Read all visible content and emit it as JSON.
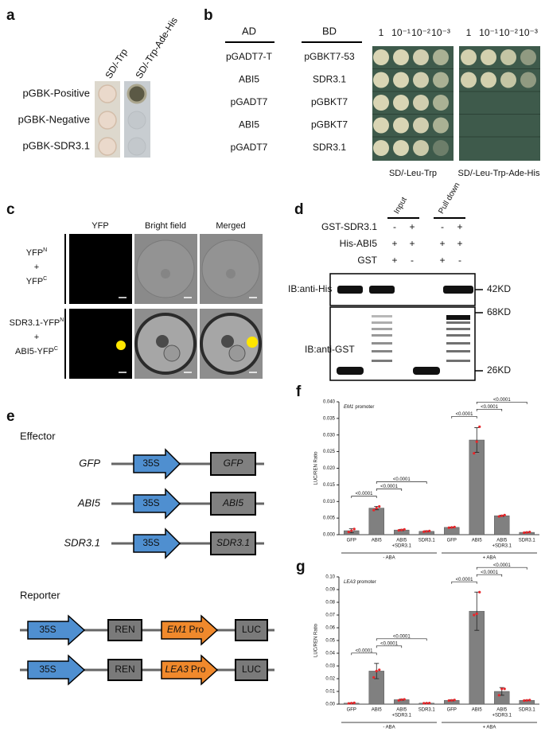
{
  "panels": {
    "a": {
      "label": "a",
      "columns": [
        "SD/-Trp",
        "SD/-Trp-Ade-His"
      ],
      "rows": [
        "pGBK-Positive",
        "pGBK-Negative",
        "pGBK-SDR3.1"
      ]
    },
    "b": {
      "label": "b",
      "headers": [
        "AD",
        "BD"
      ],
      "dilutions": [
        "1",
        "10⁻¹",
        "10⁻²",
        "10⁻³"
      ],
      "rows": [
        [
          "pGADT7-T",
          "pGBKT7-53"
        ],
        [
          "ABI5",
          "SDR3.1"
        ],
        [
          "pGADT7",
          "pGBKT7"
        ],
        [
          "ABI5",
          "pGBKT7"
        ],
        [
          "pGADT7",
          "SDR3.1"
        ]
      ],
      "media": [
        "SD/-Leu-Trp",
        "SD/-Leu-Trp-Ade-His"
      ]
    },
    "c": {
      "label": "c",
      "columns": [
        "YFP",
        "Bright field",
        "Merged"
      ],
      "rows": [
        [
          {
            "base": "YFP",
            "sup": "N"
          },
          {
            "base": "+"
          },
          {
            "base": "YFP",
            "sup": "C"
          }
        ],
        [
          {
            "base": "SDR3.1-YFP",
            "sup": "N"
          },
          {
            "base": "+"
          },
          {
            "base": "ABI5-YFP",
            "sup": "C"
          }
        ]
      ]
    },
    "d": {
      "label": "d",
      "groups": [
        "Input",
        "Pull down"
      ],
      "rows": [
        {
          "name": "GST-SDR3.1",
          "signs": [
            "-",
            "+",
            "-",
            "+"
          ]
        },
        {
          "name": "His-ABI5",
          "signs": [
            "+",
            "+",
            "+",
            "+"
          ]
        },
        {
          "name": "GST",
          "signs": [
            "+",
            "-",
            "+",
            "-"
          ]
        }
      ],
      "blots": [
        "IB:anti-His",
        "IB:anti-GST"
      ],
      "markers": [
        "42KD",
        "68KD",
        "26KD"
      ]
    },
    "e": {
      "label": "e",
      "effector_title": "Effector",
      "effectors": [
        {
          "name": "GFP",
          "promoter": "35S",
          "gene": "GFP"
        },
        {
          "name": "ABI5",
          "promoter": "35S",
          "gene": "ABI5"
        },
        {
          "name": "SDR3.1",
          "promoter": "35S",
          "gene": "SDR3.1"
        }
      ],
      "reporter_title": "Reporter",
      "reporters": [
        {
          "promoter": "35S",
          "control": "REN",
          "gene": "EM1",
          "suffix": "Pro",
          "reporter": "LUC"
        },
        {
          "promoter": "35S",
          "control": "REN",
          "gene": "LEA3",
          "suffix": "Pro",
          "reporter": "LUC"
        }
      ]
    }
  },
  "chart_data": [
    {
      "type": "bar",
      "panel_label": "f",
      "annotation_gene": "EM1",
      "annotation": "promoter",
      "ylabel": "LUC/REN Ratio",
      "categories": [
        [
          "GFP"
        ],
        [
          "ABI5"
        ],
        [
          "ABI5",
          "+SDR3.1"
        ],
        [
          "SDR3.1"
        ],
        [
          "GFP"
        ],
        [
          "ABI5"
        ],
        [
          "ABI5",
          "+SDR3.1"
        ],
        [
          "SDR3.1"
        ]
      ],
      "groups": [
        "- ABA",
        "+ ABA"
      ],
      "values": [
        0.0012,
        0.008,
        0.0014,
        0.001,
        0.0022,
        0.0285,
        0.0057,
        0.0007
      ],
      "errors": [
        0.0006,
        0.0005,
        0.0002,
        0.0002,
        0.0001,
        0.0037,
        0.0002,
        0.0001
      ],
      "points": [
        [
          0.0008,
          0.0012,
          0.0017
        ],
        [
          0.0074,
          0.008,
          0.0085
        ],
        [
          0.0013,
          0.0014,
          0.0016
        ],
        [
          0.0009,
          0.001,
          0.0011
        ],
        [
          0.0021,
          0.0022,
          0.0023
        ],
        [
          0.0245,
          0.028,
          0.0325
        ],
        [
          0.0055,
          0.0057,
          0.0059
        ],
        [
          0.0006,
          0.0007,
          0.0008
        ]
      ],
      "color": "#808080",
      "point_color": "#e8262a",
      "ylim": [
        0,
        0.04
      ],
      "yticks": [
        {
          "value": 0,
          "label": "0.000"
        },
        {
          "value": 0.005,
          "label": "0.005"
        },
        {
          "value": 0.01,
          "label": "0.010"
        },
        {
          "value": 0.015,
          "label": "0.015"
        },
        {
          "value": 0.02,
          "label": "0.020"
        },
        {
          "value": 0.025,
          "label": "0.025"
        },
        {
          "value": 0.03,
          "label": "0.030"
        },
        {
          "value": 0.035,
          "label": "0.035"
        },
        {
          "value": 0.04,
          "label": "0.040"
        }
      ],
      "comparisons": [
        [
          0,
          1
        ],
        [
          1,
          2
        ],
        [
          1,
          3
        ],
        [
          4,
          5
        ],
        [
          5,
          6
        ],
        [
          5,
          7
        ]
      ],
      "comparison_labels": [
        "<0.0001",
        "<0.0001",
        "<0.0001",
        "<0.0001",
        "<0.0001",
        "<0.0001"
      ]
    },
    {
      "type": "bar",
      "panel_label": "g",
      "annotation_gene": "LEA3",
      "annotation": "promoter",
      "ylabel": "LUC/REN Ratio",
      "categories": [
        [
          "GFP"
        ],
        [
          "ABI5"
        ],
        [
          "ABI5",
          "+SDR3.1"
        ],
        [
          "SDR3.1"
        ],
        [
          "GFP"
        ],
        [
          "ABI5"
        ],
        [
          "ABI5",
          "+SDR3.1"
        ],
        [
          "SDR3.1"
        ]
      ],
      "groups": [
        "- ABA",
        "+ ABA"
      ],
      "values": [
        0.0008,
        0.026,
        0.0035,
        0.0008,
        0.003,
        0.073,
        0.01,
        0.003
      ],
      "errors": [
        0.0003,
        0.006,
        0.0005,
        0.0002,
        0.0005,
        0.015,
        0.003,
        0.0003
      ],
      "points": [
        [
          0.0006,
          0.0008,
          0.001
        ],
        [
          0.021,
          0.026,
          0.027
        ],
        [
          0.003,
          0.0035,
          0.0038
        ],
        [
          0.0007,
          0.0008,
          0.0009
        ],
        [
          0.0028,
          0.003,
          0.0033
        ],
        [
          0.07,
          0.071,
          0.088
        ],
        [
          0.007,
          0.012,
          0.012
        ],
        [
          0.0028,
          0.003,
          0.0032
        ]
      ],
      "color": "#808080",
      "point_color": "#e8262a",
      "ylim": [
        0,
        0.1
      ],
      "yticks": [
        {
          "value": 0,
          "label": "0.00"
        },
        {
          "value": 0.01,
          "label": "0.01"
        },
        {
          "value": 0.02,
          "label": "0.02"
        },
        {
          "value": 0.03,
          "label": "0.03"
        },
        {
          "value": 0.04,
          "label": "0.04"
        },
        {
          "value": 0.05,
          "label": "0.05"
        },
        {
          "value": 0.06,
          "label": "0.06"
        },
        {
          "value": 0.07,
          "label": "0.07"
        },
        {
          "value": 0.08,
          "label": "0.08"
        },
        {
          "value": 0.09,
          "label": "0.09"
        },
        {
          "value": 0.1,
          "label": "0.10"
        }
      ],
      "comparisons": [
        [
          0,
          1
        ],
        [
          1,
          2
        ],
        [
          1,
          3
        ],
        [
          4,
          5
        ],
        [
          5,
          6
        ],
        [
          5,
          7
        ]
      ],
      "comparison_labels": [
        "<0.0001",
        "<0.0001",
        "<0.0001",
        "<0.0001",
        "<0.0001",
        "<0.0001"
      ]
    }
  ]
}
